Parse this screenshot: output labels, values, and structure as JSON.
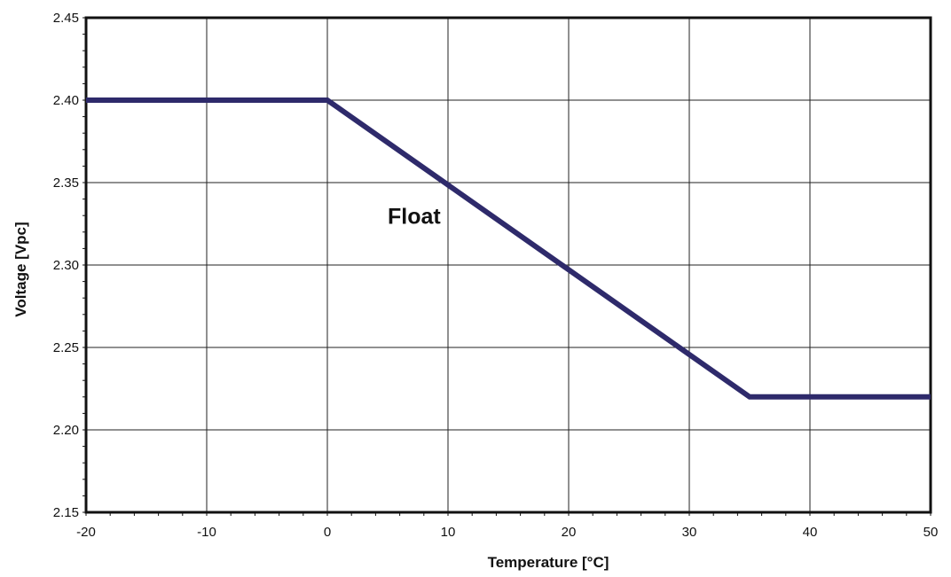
{
  "chart_data": {
    "type": "line",
    "title": "",
    "xlabel": "Temperature [°C]",
    "ylabel": "Voltage [Vpc]",
    "xlim": [
      -20,
      50
    ],
    "ylim": [
      2.15,
      2.45
    ],
    "x_ticks": [
      -20,
      -10,
      0,
      10,
      20,
      30,
      40,
      50
    ],
    "x_tick_labels": [
      "-20",
      "-10",
      "0",
      "10",
      "20",
      "30",
      "40",
      "50"
    ],
    "y_ticks": [
      2.15,
      2.2,
      2.25,
      2.3,
      2.35,
      2.4,
      2.45
    ],
    "y_tick_labels": [
      "2.15",
      "2.20",
      "2.25",
      "2.30",
      "2.35",
      "2.40",
      "2.45"
    ],
    "grid": true,
    "series": [
      {
        "name": "Float",
        "color": "#2e2a6b",
        "x": [
          -20,
          0,
          35,
          50
        ],
        "y": [
          2.4,
          2.4,
          2.22,
          2.22
        ]
      }
    ],
    "annotations": [
      {
        "text": "Float",
        "x": 5,
        "y": 2.325
      }
    ]
  }
}
